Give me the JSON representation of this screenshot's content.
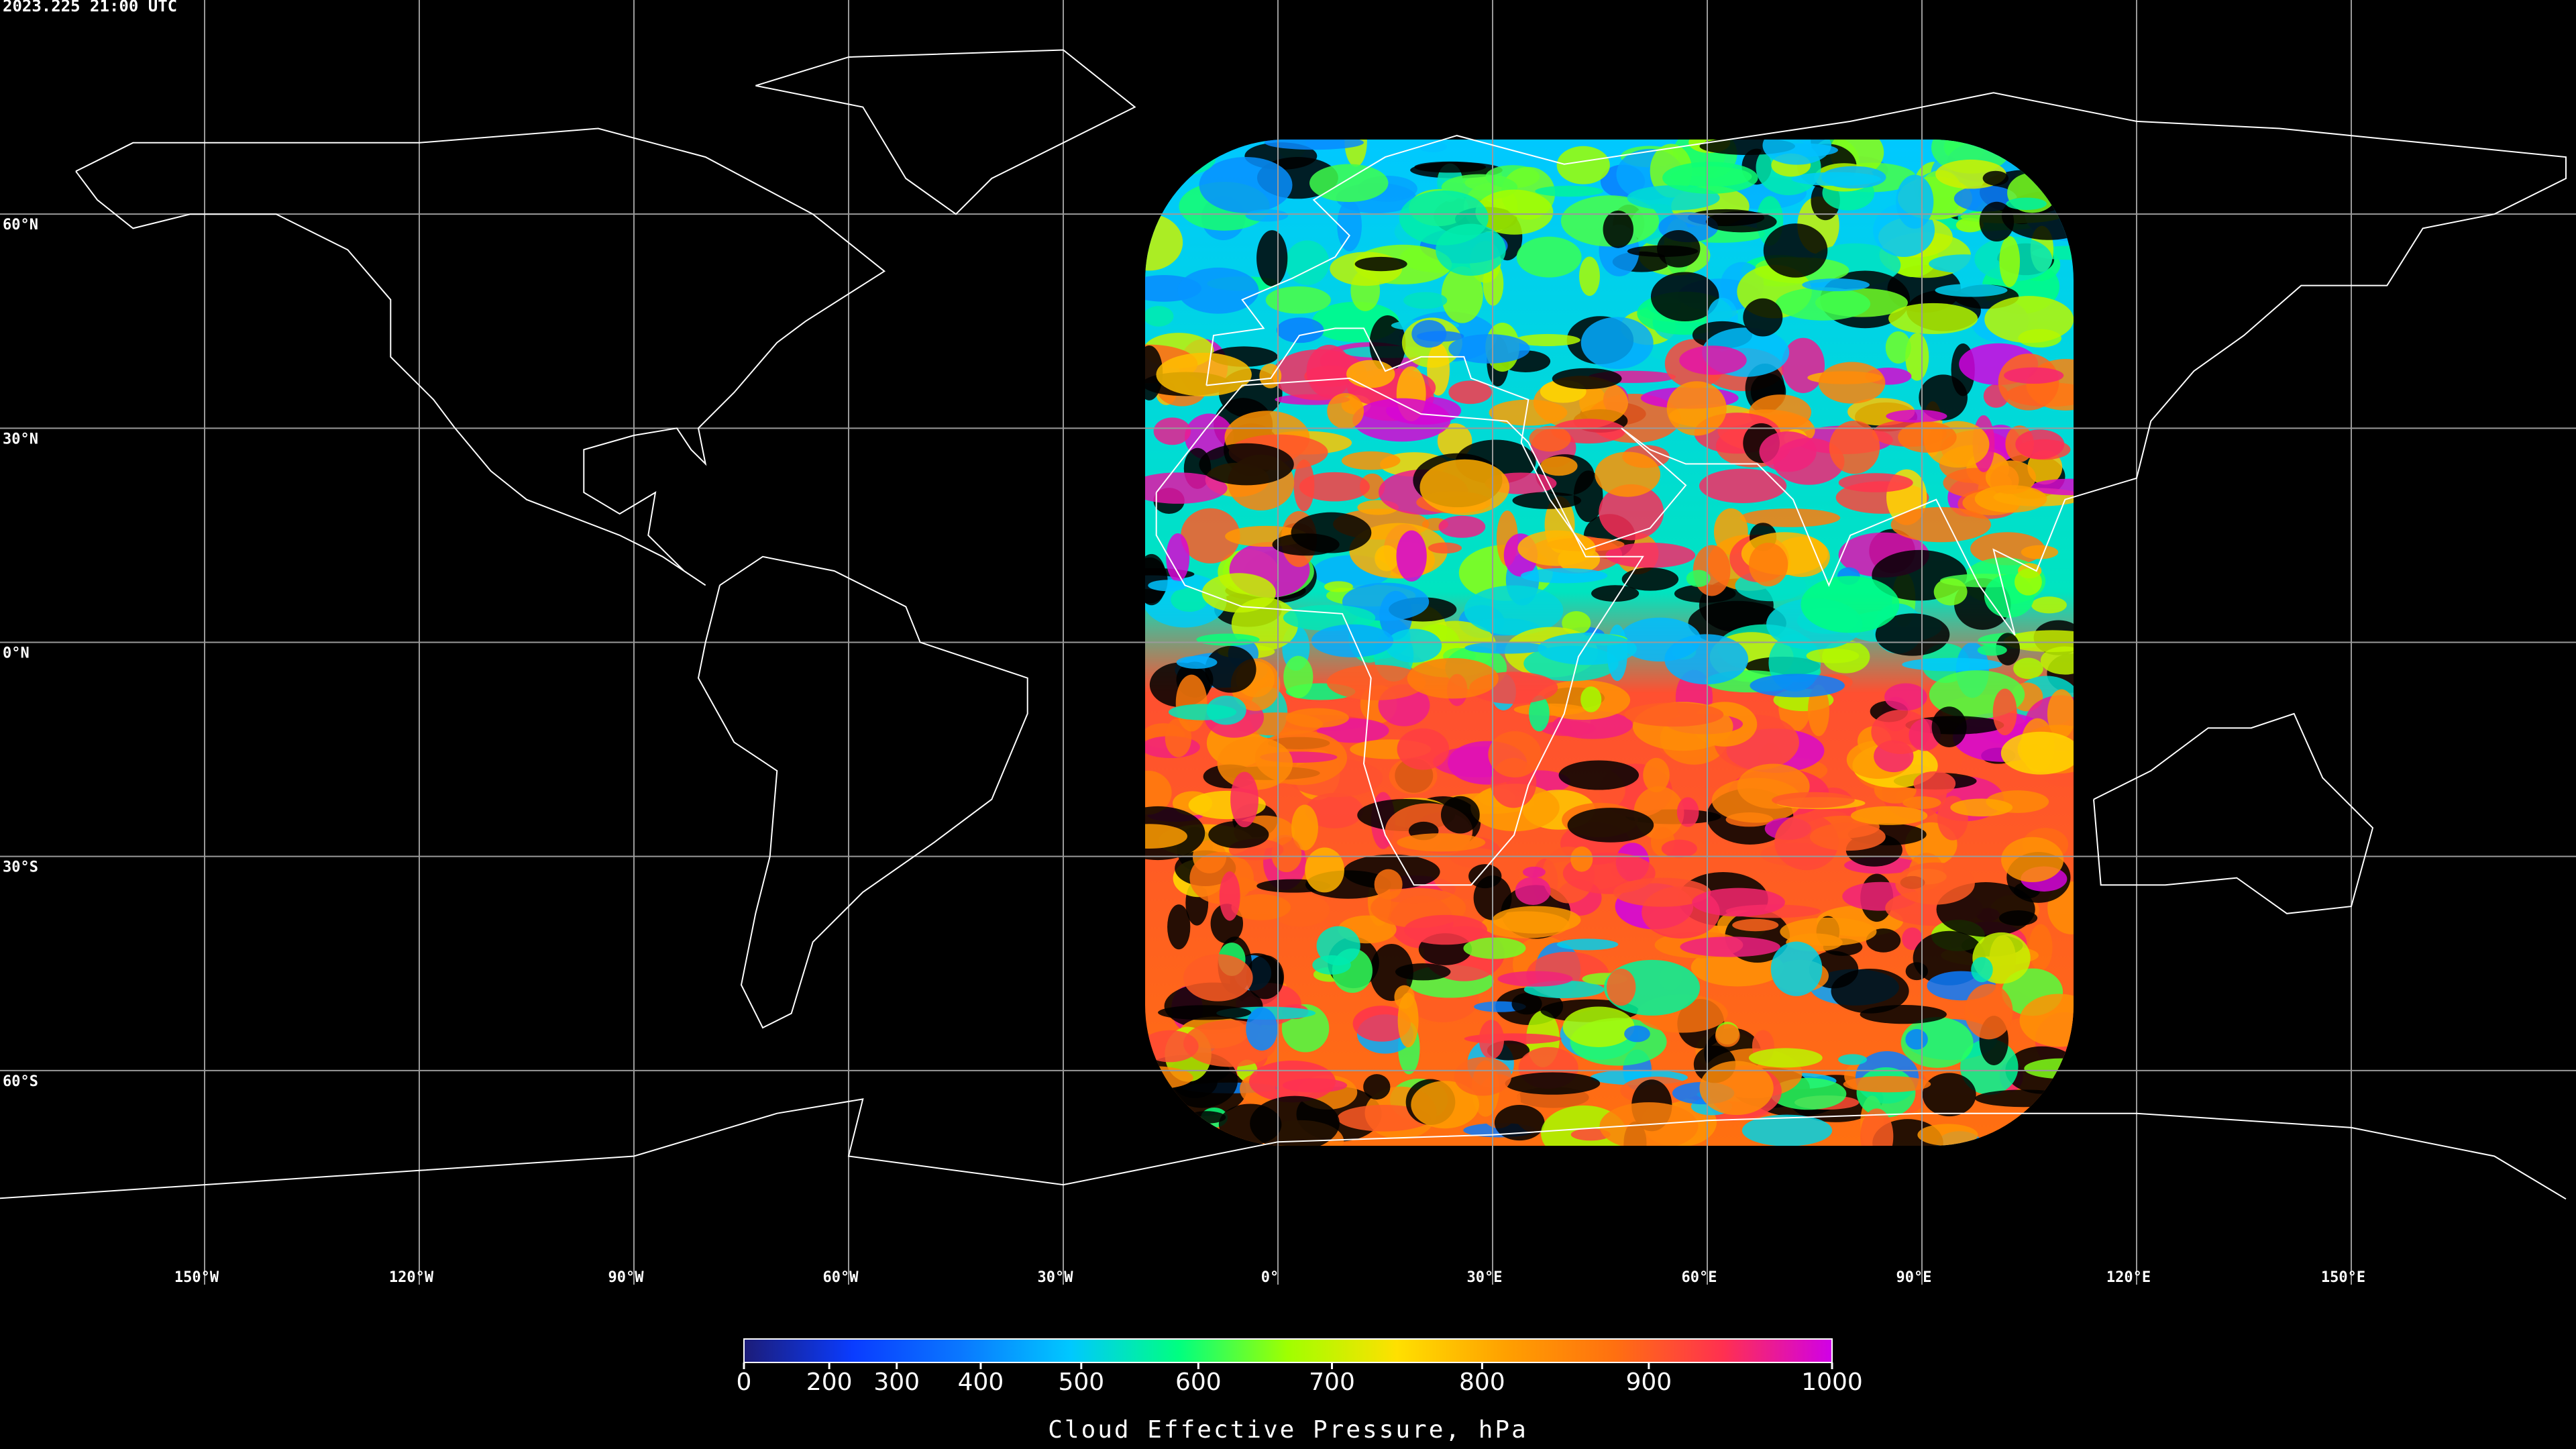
{
  "chart_data": {
    "type": "map",
    "title": "2023.225 21:00 UTC",
    "projection": "equirectangular",
    "xlim": [
      -180,
      180
    ],
    "ylim": [
      -90,
      90
    ],
    "xticks": [
      {
        "value": -150,
        "label": "150°W"
      },
      {
        "value": -120,
        "label": "120°W"
      },
      {
        "value": -90,
        "label": "90°W"
      },
      {
        "value": -60,
        "label": "60°W"
      },
      {
        "value": -30,
        "label": "30°W"
      },
      {
        "value": 0,
        "label": "0°"
      },
      {
        "value": 30,
        "label": "30°E"
      },
      {
        "value": 60,
        "label": "60°E"
      },
      {
        "value": 90,
        "label": "90°E"
      },
      {
        "value": 120,
        "label": "120°E"
      },
      {
        "value": 150,
        "label": "150°E"
      }
    ],
    "yticks": [
      {
        "value": 60,
        "label": "60°N"
      },
      {
        "value": 30,
        "label": "30°N"
      },
      {
        "value": 0,
        "label": "0°N"
      },
      {
        "value": -30,
        "label": "30°S"
      },
      {
        "value": -60,
        "label": "60°S"
      }
    ],
    "grid": true,
    "grid_color": "#9a9a9a",
    "coast_color": "#ffffff",
    "colorbar": {
      "label": "Cloud Effective Pressure, hPa",
      "lim": [
        0,
        1000
      ],
      "ticks": [
        0,
        200,
        300,
        400,
        500,
        600,
        700,
        800,
        900,
        1000
      ],
      "colors": [
        "#1c1c78",
        "#0a3cff",
        "#0a78ff",
        "#00c8ff",
        "#00ff80",
        "#a0ff00",
        "#ffe000",
        "#ffa000",
        "#ff7010",
        "#ff3050",
        "#d000e8"
      ]
    }
  }
}
